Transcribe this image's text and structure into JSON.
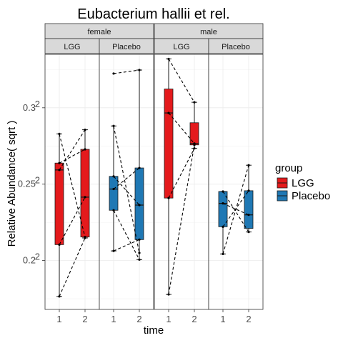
{
  "chart_data": {
    "type": "box",
    "title": "Eubacterium hallii et rel.",
    "xlabel": "time",
    "ylabel": "Relative Abundance( sqrt )",
    "x_categories": [
      "1",
      "2"
    ],
    "y_scale": "sqrt",
    "y_ticks": [
      {
        "value": 0.04,
        "base": "0.2",
        "exp": "2"
      },
      {
        "value": 0.0625,
        "base": "0.25",
        "exp": "2"
      },
      {
        "value": 0.09,
        "base": "0.3",
        "exp": "2"
      }
    ],
    "ylim_sqrt": [
      0.168,
      0.335
    ],
    "grid": true,
    "facet_rows": [
      "female",
      "male"
    ],
    "facet_cols": [
      {
        "sex": "female",
        "group": "LGG"
      },
      {
        "sex": "female",
        "group": "Placebo"
      },
      {
        "sex": "male",
        "group": "LGG"
      },
      {
        "sex": "male",
        "group": "Placebo"
      }
    ],
    "legend": {
      "title": "group",
      "position": "right",
      "items": [
        {
          "label": "LGG",
          "color": "#e41a1c"
        },
        {
          "label": "Placebo",
          "color": "#1f78b4"
        }
      ]
    },
    "panels": [
      {
        "sex": "female",
        "group": "LGG",
        "color": "#e41a1c",
        "boxes": [
          {
            "time": "1",
            "whisker_low": 0.1765,
            "q1": 0.2104,
            "median": 0.2593,
            "q3": 0.2638,
            "whisker_high": 0.2829
          },
          {
            "time": "2",
            "whisker_low": 0.2148,
            "q1": 0.2154,
            "median": 0.2415,
            "q3": 0.2728,
            "whisker_high": 0.2856
          }
        ],
        "points_t1": [
          0.1765,
          0.2104,
          0.2593,
          0.2638,
          0.2829
        ],
        "points_t2": [
          0.2148,
          0.2154,
          0.2415,
          0.2728,
          0.2856
        ],
        "pairs": [
          [
            0.2593,
            0.2856
          ],
          [
            0.2638,
            0.2728
          ],
          [
            0.2104,
            0.2415
          ],
          [
            0.1765,
            0.2148
          ],
          [
            0.2829,
            0.2154
          ]
        ]
      },
      {
        "sex": "female",
        "group": "Placebo",
        "color": "#1f78b4",
        "boxes": [
          {
            "time": "1",
            "whisker_low": 0.2063,
            "q1": 0.2329,
            "median": 0.2468,
            "q3": 0.2551,
            "whisker_high": 0.2881
          },
          {
            "time": "2",
            "whisker_low": 0.2006,
            "q1": 0.2137,
            "median": 0.2363,
            "q3": 0.2606,
            "whisker_high": 0.3247
          }
        ],
        "points_t1": [
          0.3224,
          0.2881,
          0.2551,
          0.2468,
          0.2329,
          0.2063
        ],
        "points_t2": [
          0.3247,
          0.2606,
          0.2363,
          0.2137,
          0.2006,
          0.205
        ],
        "pairs": [
          [
            0.3224,
            0.3247
          ],
          [
            0.2881,
            0.205
          ],
          [
            0.2551,
            0.2363
          ],
          [
            0.2468,
            0.2606
          ],
          [
            0.2329,
            0.2006
          ],
          [
            0.2063,
            0.2137
          ]
        ]
      },
      {
        "sex": "male",
        "group": "LGG",
        "color": "#e41a1c",
        "boxes": [
          {
            "time": "1",
            "whisker_low": 0.1778,
            "q1": 0.2409,
            "median": 0.2966,
            "q3": 0.3123,
            "whisker_high": 0.332
          },
          {
            "time": "2",
            "whisker_low": 0.2734,
            "q1": 0.2757,
            "median": 0.2766,
            "q3": 0.2902,
            "whisker_high": 0.3036
          }
        ],
        "points_t1": [
          0.332,
          0.2966,
          0.1778,
          0.2409
        ],
        "points_t2": [
          0.3036,
          0.2766,
          0.2757,
          0.2734
        ],
        "pairs": [
          [
            0.332,
            0.3036
          ],
          [
            0.2966,
            0.2766
          ],
          [
            0.1778,
            0.2757
          ],
          [
            0.2409,
            0.2734
          ]
        ]
      },
      {
        "sex": "male",
        "group": "Placebo",
        "color": "#1f78b4",
        "boxes": [
          {
            "time": "1",
            "whisker_low": 0.2043,
            "q1": 0.2221,
            "median": 0.2374,
            "q3": 0.2452,
            "whisker_high": 0.2452
          },
          {
            "time": "2",
            "whisker_low": 0.2187,
            "q1": 0.221,
            "median": 0.2299,
            "q3": 0.2457,
            "whisker_high": 0.2624
          }
        ],
        "points_t1": [
          0.2452,
          0.2374,
          0.2221,
          0.2043
        ],
        "points_t2": [
          0.2624,
          0.2457,
          0.2299,
          0.2187
        ],
        "pairs": [
          [
            0.2452,
            0.2187
          ],
          [
            0.2374,
            0.2299
          ],
          [
            0.2221,
            0.2457
          ],
          [
            0.2043,
            0.2624
          ]
        ]
      }
    ]
  }
}
